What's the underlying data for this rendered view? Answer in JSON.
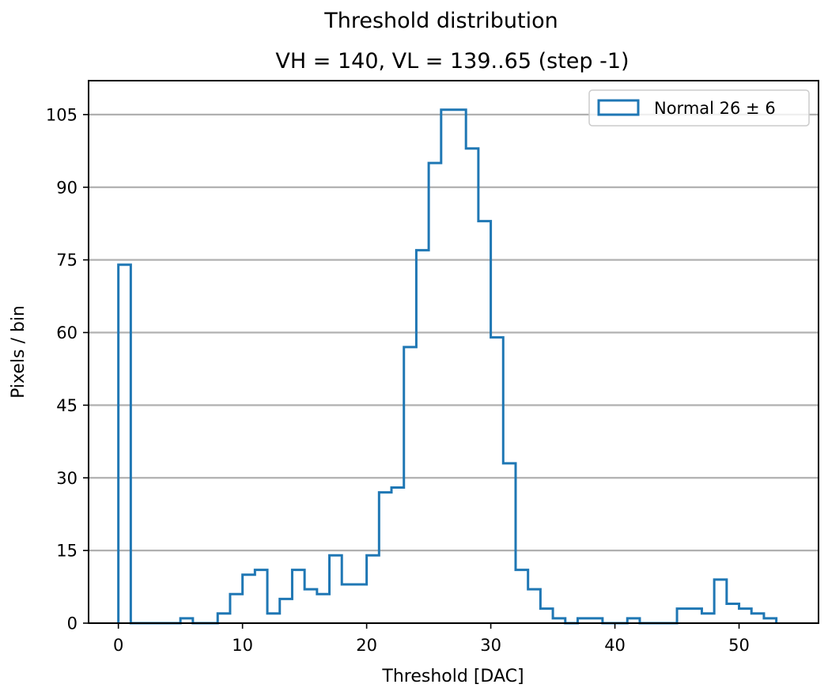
{
  "chart_data": {
    "type": "histogram",
    "title": "Threshold distribution",
    "subtitle": "VH = 140, VL = 139..65 (step -1)",
    "xlabel": "Threshold [DAC]",
    "ylabel": "Pixels / bin",
    "xlim": [
      -2.4,
      56.4
    ],
    "ylim": [
      0,
      112
    ],
    "xticks": [
      0,
      10,
      20,
      30,
      40,
      50
    ],
    "yticks": [
      0,
      15,
      30,
      45,
      60,
      75,
      90,
      105
    ],
    "grid": "horizontal",
    "legend_position": "top-right",
    "series": [
      {
        "name": "Normal 26 ± 6",
        "color": "#1f77b4",
        "bins": [
          {
            "x0": 0,
            "x1": 1,
            "count": 74
          },
          {
            "x0": 5,
            "x1": 6,
            "count": 1
          },
          {
            "x0": 8,
            "x1": 9,
            "count": 2
          },
          {
            "x0": 9,
            "x1": 10,
            "count": 6
          },
          {
            "x0": 10,
            "x1": 11,
            "count": 10
          },
          {
            "x0": 11,
            "x1": 12,
            "count": 11
          },
          {
            "x0": 12,
            "x1": 13,
            "count": 2
          },
          {
            "x0": 13,
            "x1": 14,
            "count": 5
          },
          {
            "x0": 14,
            "x1": 15,
            "count": 11
          },
          {
            "x0": 15,
            "x1": 16,
            "count": 7
          },
          {
            "x0": 16,
            "x1": 17,
            "count": 6
          },
          {
            "x0": 17,
            "x1": 18,
            "count": 14
          },
          {
            "x0": 18,
            "x1": 20,
            "count": 8
          },
          {
            "x0": 20,
            "x1": 21,
            "count": 14
          },
          {
            "x0": 21,
            "x1": 22,
            "count": 27
          },
          {
            "x0": 22,
            "x1": 23,
            "count": 28
          },
          {
            "x0": 23,
            "x1": 24,
            "count": 57
          },
          {
            "x0": 24,
            "x1": 25,
            "count": 77
          },
          {
            "x0": 25,
            "x1": 26,
            "count": 95
          },
          {
            "x0": 26,
            "x1": 28,
            "count": 106
          },
          {
            "x0": 28,
            "x1": 29,
            "count": 98
          },
          {
            "x0": 29,
            "x1": 30,
            "count": 83
          },
          {
            "x0": 30,
            "x1": 31,
            "count": 59
          },
          {
            "x0": 31,
            "x1": 32,
            "count": 33
          },
          {
            "x0": 32,
            "x1": 33,
            "count": 11
          },
          {
            "x0": 33,
            "x1": 34,
            "count": 7
          },
          {
            "x0": 34,
            "x1": 35,
            "count": 3
          },
          {
            "x0": 35,
            "x1": 36,
            "count": 1
          },
          {
            "x0": 37,
            "x1": 39,
            "count": 1
          },
          {
            "x0": 41,
            "x1": 42,
            "count": 1
          },
          {
            "x0": 45,
            "x1": 47,
            "count": 3
          },
          {
            "x0": 47,
            "x1": 48,
            "count": 2
          },
          {
            "x0": 48,
            "x1": 49,
            "count": 9
          },
          {
            "x0": 49,
            "x1": 50,
            "count": 4
          },
          {
            "x0": 50,
            "x1": 51,
            "count": 3
          },
          {
            "x0": 51,
            "x1": 52,
            "count": 2
          },
          {
            "x0": 52,
            "x1": 53,
            "count": 1
          }
        ]
      }
    ]
  }
}
